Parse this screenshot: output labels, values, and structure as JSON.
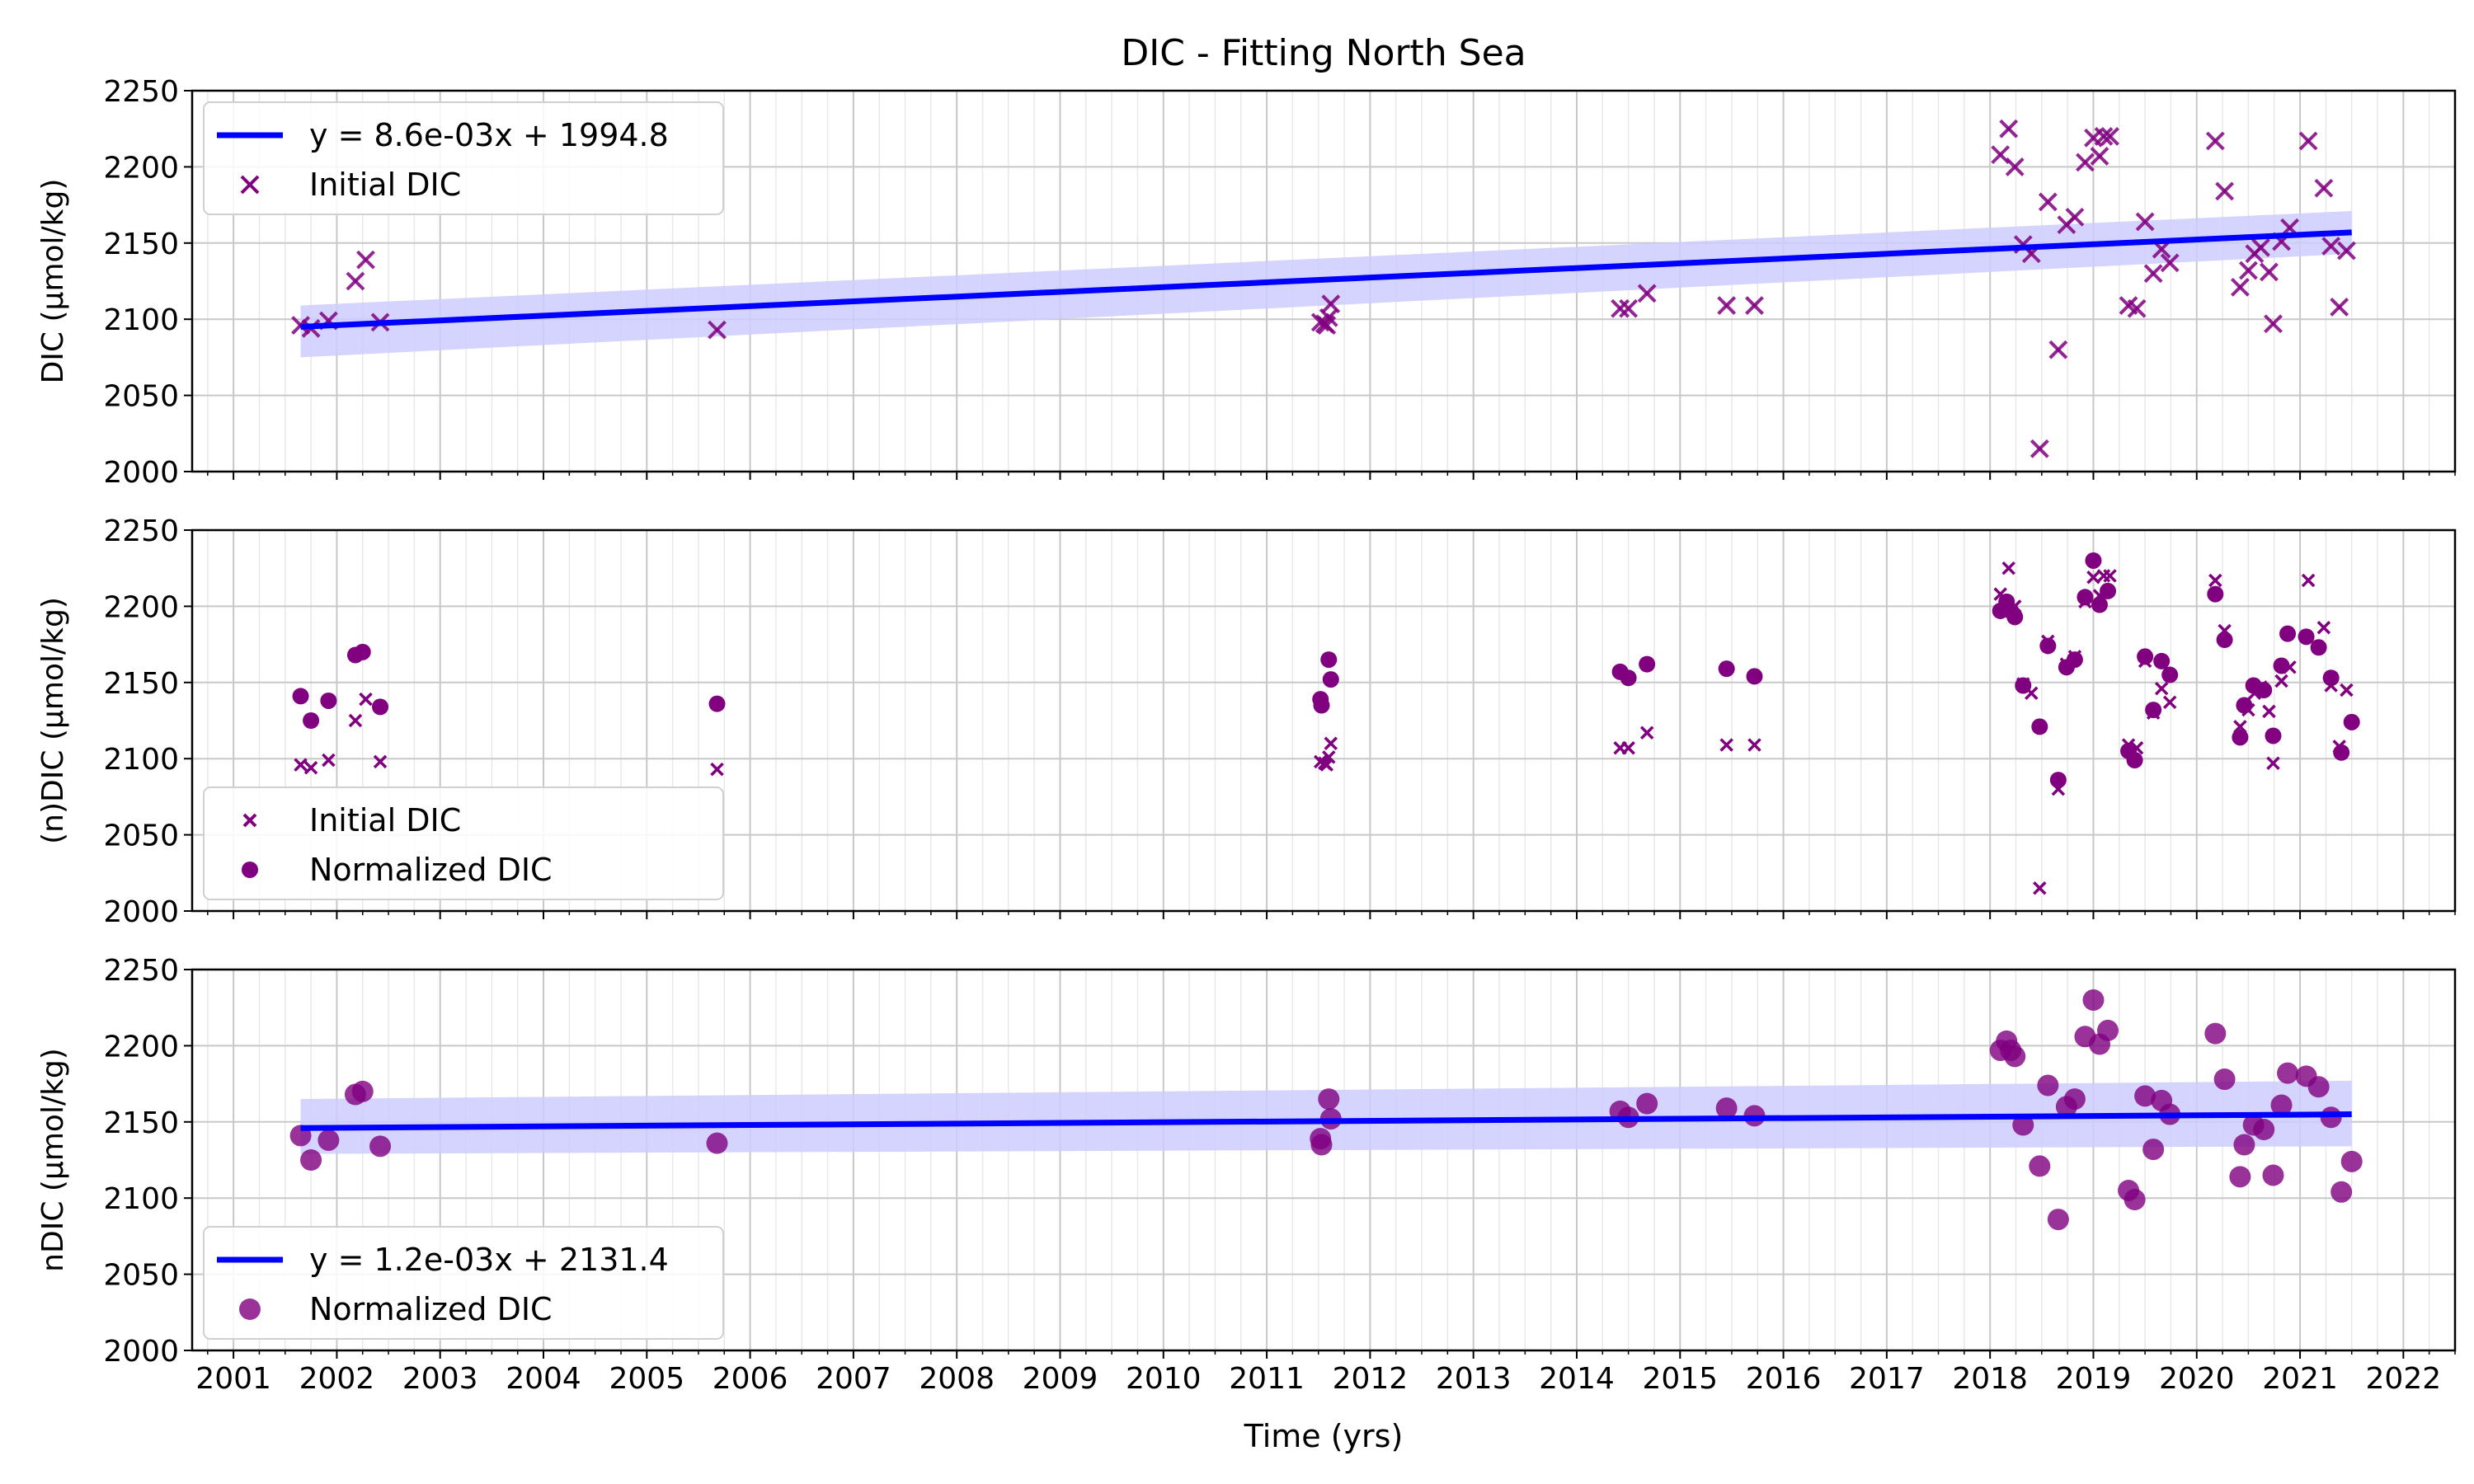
{
  "figure": {
    "title": "DIC - Fitting North Sea",
    "xlabel": "Time (yrs)",
    "x_ticks": [
      2001,
      2002,
      2003,
      2004,
      2005,
      2006,
      2007,
      2008,
      2009,
      2010,
      2011,
      2012,
      2013,
      2014,
      2015,
      2016,
      2017,
      2018,
      2019,
      2020,
      2021,
      2022
    ]
  },
  "chart_data": [
    {
      "type": "scatter",
      "panel": "top",
      "ylabel": "DIC (µmol/kg)",
      "xlim": [
        2000.6,
        2022.5
      ],
      "ylim": [
        2000,
        2250
      ],
      "y_ticks": [
        2000,
        2050,
        2100,
        2150,
        2200,
        2250
      ],
      "grid": true,
      "legend_position": "upper left",
      "legend": [
        "y = 8.6e-03x + 1994.8",
        "Initial DIC"
      ],
      "series": [
        {
          "name": "Initial DIC",
          "marker": "x",
          "color": "#800080",
          "x": [
            2001.65,
            2001.75,
            2001.92,
            2002.18,
            2002.28,
            2002.42,
            2005.68,
            2011.52,
            2011.56,
            2011.58,
            2011.6,
            2011.62,
            2014.42,
            2014.5,
            2014.68,
            2015.45,
            2015.72,
            2018.1,
            2018.18,
            2018.24,
            2018.32,
            2018.48,
            2018.4,
            2018.56,
            2018.66,
            2018.74,
            2018.82,
            2018.92,
            2019.0,
            2019.06,
            2019.1,
            2019.16,
            2019.34,
            2019.42,
            2019.5,
            2019.58,
            2019.66,
            2019.74,
            2020.18,
            2020.27,
            2020.42,
            2020.5,
            2020.56,
            2020.62,
            2020.7,
            2020.74,
            2020.82,
            2020.9,
            2021.08,
            2021.23,
            2021.3,
            2021.38,
            2021.45
          ],
          "y": [
            2096,
            2094,
            2099,
            2125,
            2139,
            2098,
            2093,
            2098,
            2097,
            2096,
            2101,
            2110,
            2107,
            2107,
            2117,
            2109,
            2109,
            2208,
            2225,
            2200,
            2149,
            2015,
            2143,
            2177,
            2080,
            2162,
            2167,
            2203,
            2219,
            2207,
            2220,
            2220,
            2109,
            2107,
            2164,
            2130,
            2146,
            2137,
            2217,
            2184,
            2121,
            2132,
            2143,
            2147,
            2131,
            2097,
            2151,
            2160,
            2217,
            2186,
            2148,
            2108,
            2145
          ]
        },
        {
          "name": "y = 8.6e-03x + 1994.8",
          "type": "line",
          "color": "#0000ff",
          "x": [
            2001.65,
            2021.5
          ],
          "y": [
            2095,
            2157
          ],
          "confidence_band": {
            "color": "#ccccff",
            "lower": [
              2075,
              2143
            ],
            "upper": [
              2109,
              2171
            ]
          }
        }
      ]
    },
    {
      "type": "scatter",
      "panel": "middle",
      "ylabel": "(n)DIC (µmol/kg)",
      "xlim": [
        2000.6,
        2022.5
      ],
      "ylim": [
        2000,
        2250
      ],
      "y_ticks": [
        2000,
        2050,
        2100,
        2150,
        2200,
        2250
      ],
      "grid": true,
      "legend_position": "lower left",
      "legend": [
        "Initial DIC",
        "Normalized DIC"
      ],
      "series": [
        {
          "name": "Initial DIC",
          "marker": "x",
          "color": "#800080",
          "x": [
            2001.65,
            2001.75,
            2001.92,
            2002.18,
            2002.28,
            2002.42,
            2005.68,
            2011.52,
            2011.56,
            2011.58,
            2011.6,
            2011.62,
            2014.42,
            2014.5,
            2014.68,
            2015.45,
            2015.72,
            2018.1,
            2018.18,
            2018.24,
            2018.32,
            2018.48,
            2018.4,
            2018.56,
            2018.66,
            2018.74,
            2018.82,
            2018.92,
            2019.0,
            2019.06,
            2019.1,
            2019.16,
            2019.34,
            2019.42,
            2019.5,
            2019.58,
            2019.66,
            2019.74,
            2020.18,
            2020.27,
            2020.42,
            2020.5,
            2020.56,
            2020.62,
            2020.7,
            2020.74,
            2020.82,
            2020.9,
            2021.08,
            2021.23,
            2021.3,
            2021.38,
            2021.45
          ],
          "y": [
            2096,
            2094,
            2099,
            2125,
            2139,
            2098,
            2093,
            2098,
            2097,
            2096,
            2101,
            2110,
            2107,
            2107,
            2117,
            2109,
            2109,
            2208,
            2225,
            2200,
            2149,
            2015,
            2143,
            2177,
            2080,
            2162,
            2167,
            2203,
            2219,
            2207,
            2220,
            2220,
            2109,
            2107,
            2164,
            2130,
            2146,
            2137,
            2217,
            2184,
            2121,
            2132,
            2143,
            2147,
            2131,
            2097,
            2151,
            2160,
            2217,
            2186,
            2148,
            2108,
            2145
          ]
        },
        {
          "name": "Normalized DIC",
          "marker": "o",
          "color": "#800080",
          "x": [
            2001.65,
            2001.75,
            2001.92,
            2002.18,
            2002.25,
            2002.42,
            2005.68,
            2011.52,
            2011.53,
            2011.6,
            2011.62,
            2014.42,
            2014.5,
            2014.68,
            2015.45,
            2015.72,
            2018.1,
            2018.16,
            2018.2,
            2018.24,
            2018.32,
            2018.48,
            2018.56,
            2018.66,
            2018.74,
            2018.82,
            2018.92,
            2019.0,
            2019.06,
            2019.14,
            2019.34,
            2019.4,
            2019.5,
            2019.58,
            2019.66,
            2019.74,
            2020.18,
            2020.27,
            2020.42,
            2020.46,
            2020.55,
            2020.65,
            2020.74,
            2020.82,
            2020.88,
            2021.06,
            2021.18,
            2021.3,
            2021.4,
            2021.5
          ],
          "y": [
            2141,
            2125,
            2138,
            2168,
            2170,
            2134,
            2136,
            2139,
            2135,
            2165,
            2152,
            2157,
            2153,
            2162,
            2159,
            2154,
            2197,
            2203,
            2197,
            2193,
            2148,
            2121,
            2174,
            2086,
            2160,
            2165,
            2206,
            2230,
            2201,
            2210,
            2105,
            2099,
            2167,
            2132,
            2164,
            2155,
            2208,
            2178,
            2114,
            2135,
            2148,
            2145,
            2115,
            2161,
            2182,
            2180,
            2173,
            2153,
            2104,
            2124
          ]
        }
      ]
    },
    {
      "type": "scatter",
      "panel": "bottom",
      "ylabel": "nDIC (µmol/kg)",
      "xlim": [
        2000.6,
        2022.5
      ],
      "ylim": [
        2000,
        2250
      ],
      "y_ticks": [
        2000,
        2050,
        2100,
        2150,
        2200,
        2250
      ],
      "grid": true,
      "legend_position": "lower left",
      "legend": [
        "y = 1.2e-03x + 2131.4",
        "Normalized DIC"
      ],
      "series": [
        {
          "name": "Normalized DIC",
          "marker": "o",
          "color": "#800080",
          "x": [
            2001.65,
            2001.75,
            2001.92,
            2002.18,
            2002.25,
            2002.42,
            2005.68,
            2011.52,
            2011.53,
            2011.6,
            2011.62,
            2014.42,
            2014.5,
            2014.68,
            2015.45,
            2015.72,
            2018.1,
            2018.16,
            2018.2,
            2018.24,
            2018.32,
            2018.48,
            2018.56,
            2018.66,
            2018.74,
            2018.82,
            2018.92,
            2019.0,
            2019.06,
            2019.14,
            2019.34,
            2019.4,
            2019.5,
            2019.58,
            2019.66,
            2019.74,
            2020.18,
            2020.27,
            2020.42,
            2020.46,
            2020.55,
            2020.65,
            2020.74,
            2020.82,
            2020.88,
            2021.06,
            2021.18,
            2021.3,
            2021.4,
            2021.5
          ],
          "y": [
            2141,
            2125,
            2138,
            2168,
            2170,
            2134,
            2136,
            2139,
            2135,
            2165,
            2152,
            2157,
            2153,
            2162,
            2159,
            2154,
            2197,
            2203,
            2197,
            2193,
            2148,
            2121,
            2174,
            2086,
            2160,
            2165,
            2206,
            2230,
            2201,
            2210,
            2105,
            2099,
            2167,
            2132,
            2164,
            2155,
            2208,
            2178,
            2114,
            2135,
            2148,
            2145,
            2115,
            2161,
            2182,
            2180,
            2173,
            2153,
            2104,
            2124
          ]
        },
        {
          "name": "y = 1.2e-03x + 2131.4",
          "type": "line",
          "color": "#0000ff",
          "x": [
            2001.65,
            2021.5
          ],
          "y": [
            2146,
            2155
          ],
          "confidence_band": {
            "color": "#ccccff",
            "lower": [
              2129,
              2134
            ],
            "upper": [
              2165,
              2177
            ]
          }
        }
      ]
    }
  ]
}
